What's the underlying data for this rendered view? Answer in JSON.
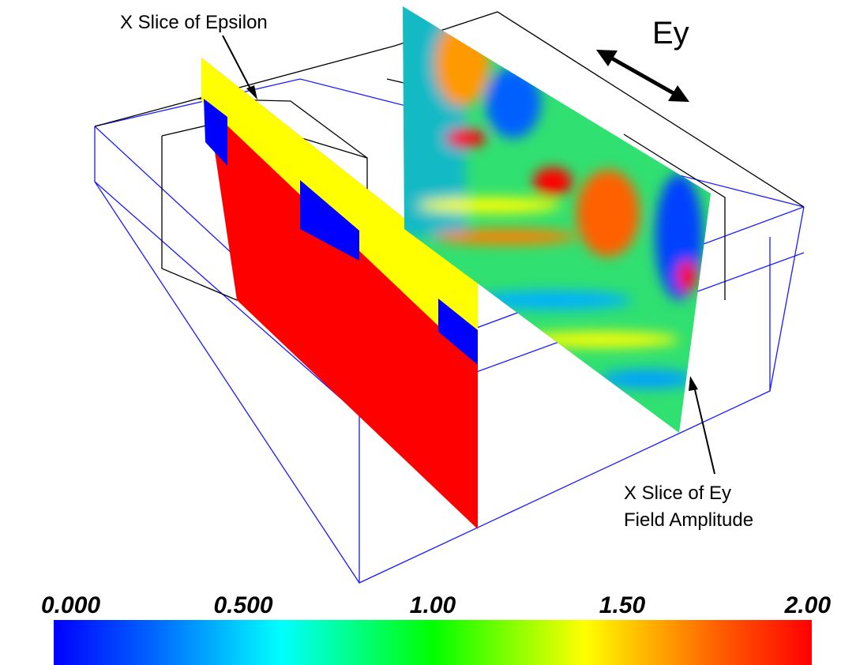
{
  "annotations": {
    "epsilon_slice": "X Slice of Epsilon",
    "field": "Ey",
    "ey_slice": [
      "X Slice of Ey",
      "Field Amplitude"
    ]
  },
  "colorbar": {
    "lim": [
      0,
      2
    ],
    "ticks": [
      {
        "value": 0,
        "label": "0.000"
      },
      {
        "value": 0.5,
        "label": "0.500"
      },
      {
        "value": 1,
        "label": "1.00"
      },
      {
        "value": 1.5,
        "label": "1.50"
      },
      {
        "value": 2,
        "label": "2.00"
      }
    ]
  }
}
